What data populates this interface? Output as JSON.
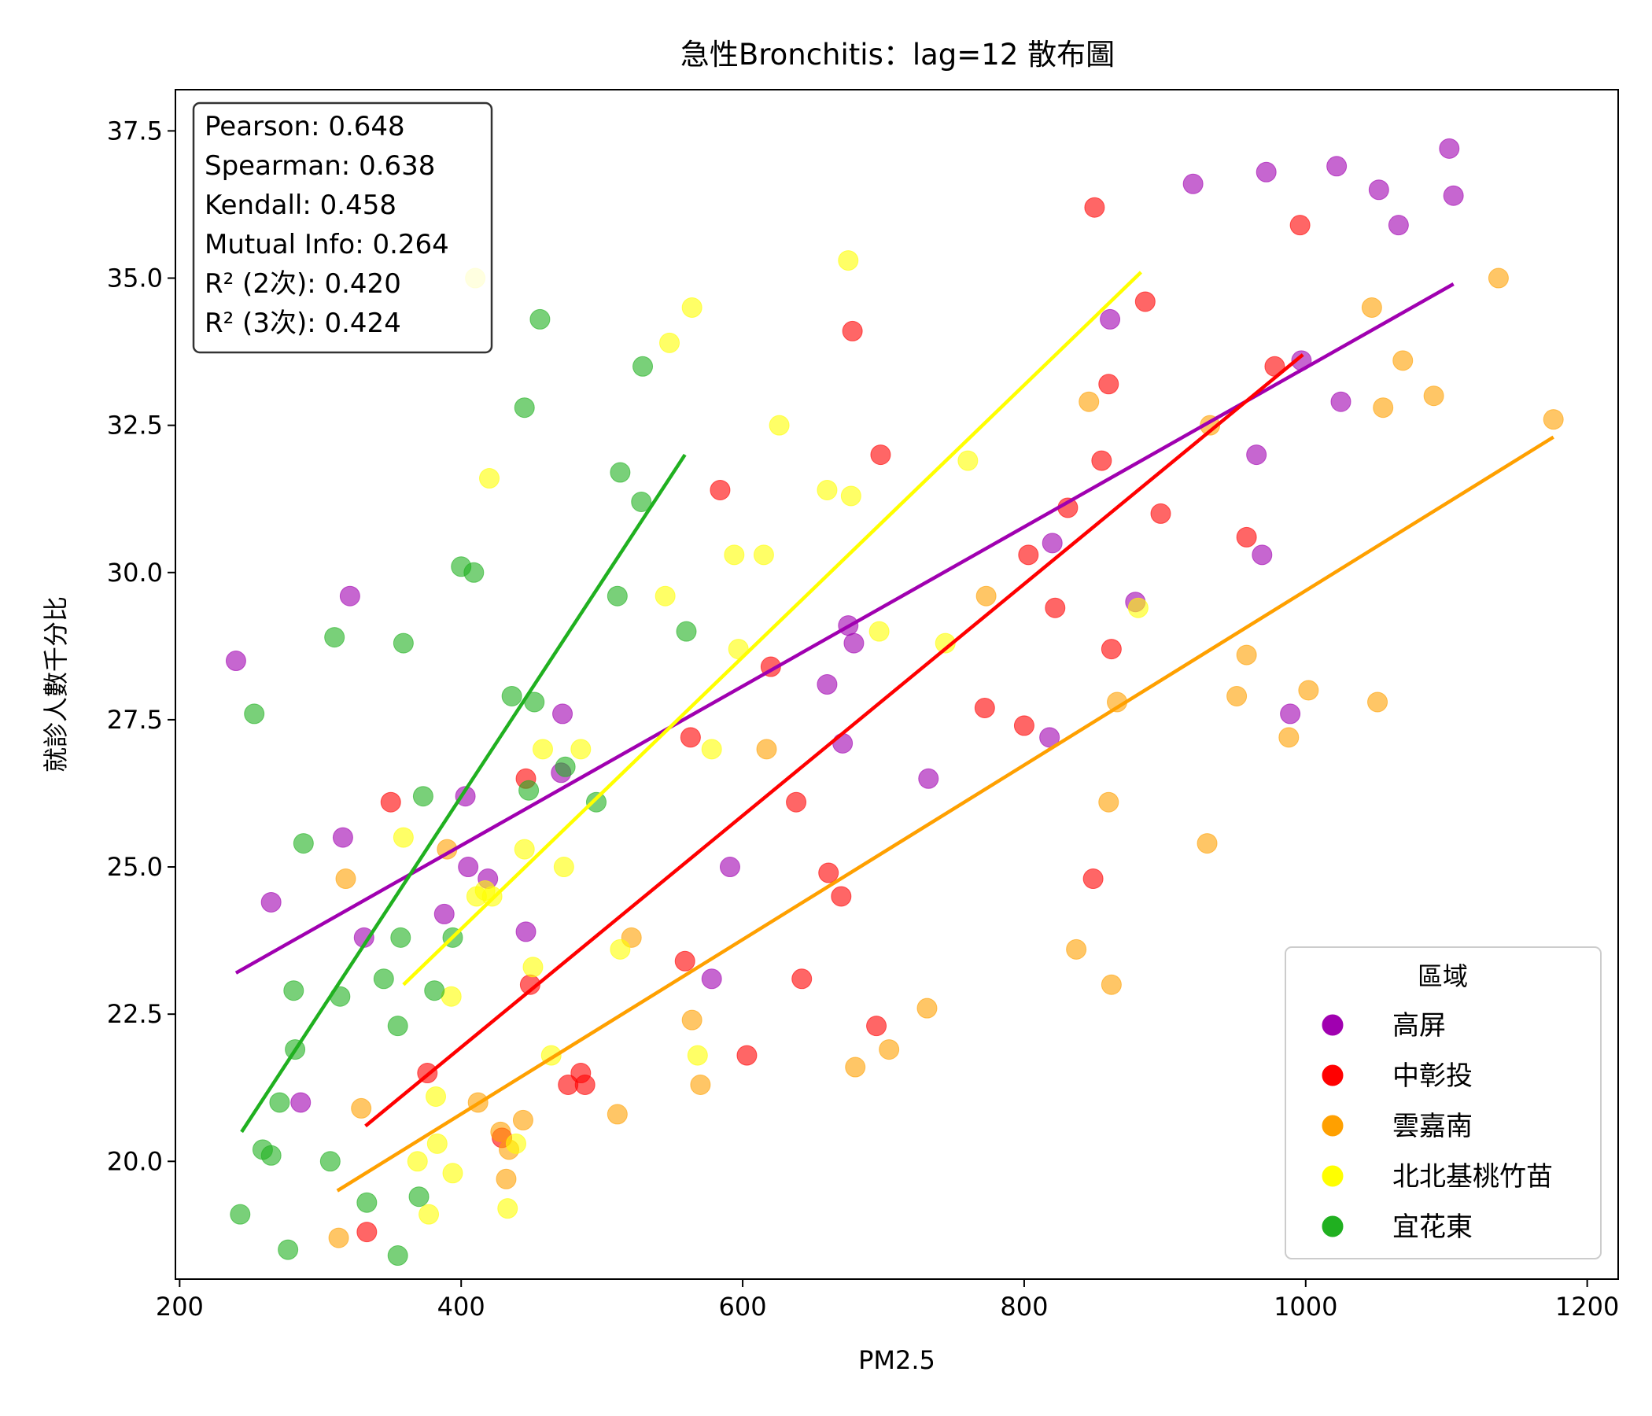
{
  "chart_data": {
    "type": "scatter",
    "title": "急性Bronchitis：lag=12 散布圖",
    "xlabel": "PM2.5",
    "ylabel": "就診人數千分比",
    "xlim": [
      197,
      1222
    ],
    "ylim": [
      18.0,
      38.2
    ],
    "xticks": [
      200,
      400,
      600,
      800,
      1000,
      1200
    ],
    "xtick_labels": [
      "200",
      "400",
      "600",
      "800",
      "1000",
      "1200"
    ],
    "yticks": [
      20.0,
      22.5,
      25.0,
      27.5,
      30.0,
      32.5,
      35.0,
      37.5
    ],
    "ytick_labels": [
      "20.0",
      "22.5",
      "25.0",
      "27.5",
      "30.0",
      "32.5",
      "35.0",
      "37.5"
    ],
    "grid": false,
    "stats_box": [
      "Pearson: 0.648",
      "Spearman: 0.638",
      "Kendall: 0.458",
      "Mutual Info: 0.264",
      "R² (2次): 0.420",
      "R² (3次): 0.424"
    ],
    "legend": {
      "title": "區域",
      "placement": "lower-right"
    },
    "series": [
      {
        "name": "高屏",
        "color": "#a000b0",
        "points": [
          [
            240,
            28.5
          ],
          [
            265,
            24.4
          ],
          [
            286,
            21.0
          ],
          [
            316,
            25.5
          ],
          [
            321,
            29.6
          ],
          [
            331,
            23.8
          ],
          [
            403,
            26.2
          ],
          [
            405,
            25.0
          ],
          [
            388,
            24.2
          ],
          [
            419,
            24.8
          ],
          [
            446,
            23.9
          ],
          [
            471,
            26.6
          ],
          [
            472,
            27.6
          ],
          [
            578,
            23.1
          ],
          [
            591,
            25.0
          ],
          [
            660,
            28.1
          ],
          [
            671,
            27.1
          ],
          [
            675,
            29.1
          ],
          [
            679,
            28.8
          ],
          [
            732,
            26.5
          ],
          [
            818,
            27.2
          ],
          [
            820,
            30.5
          ],
          [
            861,
            34.3
          ],
          [
            879,
            29.5
          ],
          [
            920,
            36.6
          ],
          [
            965,
            32.0
          ],
          [
            969,
            30.3
          ],
          [
            972,
            36.8
          ],
          [
            989,
            27.6
          ],
          [
            997,
            33.6
          ],
          [
            1022,
            36.9
          ],
          [
            1025,
            32.9
          ],
          [
            1052,
            36.5
          ],
          [
            1066,
            35.9
          ],
          [
            1102,
            37.2
          ],
          [
            1105,
            36.4
          ]
        ],
        "fit": [
          [
            240,
            23.2
          ],
          [
            1105,
            34.9
          ]
        ]
      },
      {
        "name": "中彰投",
        "color": "#ff0000",
        "points": [
          [
            333,
            18.8
          ],
          [
            350,
            26.1
          ],
          [
            376,
            21.5
          ],
          [
            446,
            26.5
          ],
          [
            449,
            23.0
          ],
          [
            429,
            20.4
          ],
          [
            476,
            21.3
          ],
          [
            485,
            21.5
          ],
          [
            488,
            21.3
          ],
          [
            559,
            23.4
          ],
          [
            563,
            27.2
          ],
          [
            584,
            31.4
          ],
          [
            603,
            21.8
          ],
          [
            620,
            28.4
          ],
          [
            638,
            26.1
          ],
          [
            642,
            23.1
          ],
          [
            661,
            24.9
          ],
          [
            670,
            24.5
          ],
          [
            678,
            34.1
          ],
          [
            695,
            22.3
          ],
          [
            698,
            32.0
          ],
          [
            772,
            27.7
          ],
          [
            800,
            27.4
          ],
          [
            803,
            30.3
          ],
          [
            822,
            29.4
          ],
          [
            831,
            31.1
          ],
          [
            849,
            24.8
          ],
          [
            850,
            36.2
          ],
          [
            855,
            31.9
          ],
          [
            860,
            33.2
          ],
          [
            862,
            28.7
          ],
          [
            886,
            34.6
          ],
          [
            897,
            31.0
          ],
          [
            958,
            30.6
          ],
          [
            978,
            33.5
          ],
          [
            996,
            35.9
          ]
        ],
        "fit": [
          [
            332,
            20.6
          ],
          [
            998,
            33.7
          ]
        ]
      },
      {
        "name": "雲嘉南",
        "color": "#ffa000",
        "points": [
          [
            313,
            18.7
          ],
          [
            318,
            24.8
          ],
          [
            329,
            20.9
          ],
          [
            390,
            25.3
          ],
          [
            412,
            21.0
          ],
          [
            428,
            20.5
          ],
          [
            432,
            19.7
          ],
          [
            434,
            20.2
          ],
          [
            444,
            20.7
          ],
          [
            511,
            20.8
          ],
          [
            521,
            23.8
          ],
          [
            564,
            22.4
          ],
          [
            570,
            21.3
          ],
          [
            617,
            27.0
          ],
          [
            680,
            21.6
          ],
          [
            704,
            21.9
          ],
          [
            731,
            22.6
          ],
          [
            773,
            29.6
          ],
          [
            837,
            23.6
          ],
          [
            846,
            32.9
          ],
          [
            860,
            26.1
          ],
          [
            862,
            23.0
          ],
          [
            866,
            27.8
          ],
          [
            930,
            25.4
          ],
          [
            932,
            32.5
          ],
          [
            951,
            27.9
          ],
          [
            958,
            28.6
          ],
          [
            988,
            27.2
          ],
          [
            1002,
            28.0
          ],
          [
            1047,
            34.5
          ],
          [
            1051,
            27.8
          ],
          [
            1055,
            32.8
          ],
          [
            1069,
            33.6
          ],
          [
            1091,
            33.0
          ],
          [
            1137,
            35.0
          ],
          [
            1176,
            32.6
          ]
        ],
        "fit": [
          [
            312,
            19.5
          ],
          [
            1176,
            32.3
          ]
        ]
      },
      {
        "name": "北北基桃竹苗",
        "color": "#ffff00",
        "points": [
          [
            359,
            25.5
          ],
          [
            369,
            20.0
          ],
          [
            377,
            19.1
          ],
          [
            382,
            21.1
          ],
          [
            383,
            20.3
          ],
          [
            393,
            22.8
          ],
          [
            394,
            19.8
          ],
          [
            410,
            35.0
          ],
          [
            411,
            24.5
          ],
          [
            417,
            24.6
          ],
          [
            420,
            31.6
          ],
          [
            422,
            24.5
          ],
          [
            433,
            19.2
          ],
          [
            439,
            20.3
          ],
          [
            445,
            25.3
          ],
          [
            451,
            23.3
          ],
          [
            458,
            27.0
          ],
          [
            464,
            21.8
          ],
          [
            473,
            25.0
          ],
          [
            485,
            27.0
          ],
          [
            513,
            23.6
          ],
          [
            545,
            29.6
          ],
          [
            548,
            33.9
          ],
          [
            564,
            34.5
          ],
          [
            568,
            21.8
          ],
          [
            578,
            27.0
          ],
          [
            594,
            30.3
          ],
          [
            597,
            28.7
          ],
          [
            615,
            30.3
          ],
          [
            626,
            32.5
          ],
          [
            660,
            31.4
          ],
          [
            675,
            35.3
          ],
          [
            677,
            31.3
          ],
          [
            697,
            29.0
          ],
          [
            744,
            28.8
          ],
          [
            760,
            31.9
          ],
          [
            881,
            29.4
          ]
        ],
        "fit": [
          [
            359,
            23.0
          ],
          [
            883,
            35.1
          ]
        ]
      },
      {
        "name": "宜花東",
        "color": "#20b020",
        "points": [
          [
            243,
            19.1
          ],
          [
            253,
            27.6
          ],
          [
            259,
            20.2
          ],
          [
            265,
            20.1
          ],
          [
            271,
            21.0
          ],
          [
            277,
            18.5
          ],
          [
            281,
            22.9
          ],
          [
            282,
            21.9
          ],
          [
            288,
            25.4
          ],
          [
            307,
            20.0
          ],
          [
            310,
            28.9
          ],
          [
            314,
            22.8
          ],
          [
            333,
            19.3
          ],
          [
            345,
            23.1
          ],
          [
            355,
            18.4
          ],
          [
            355,
            22.3
          ],
          [
            357,
            23.8
          ],
          [
            359,
            28.8
          ],
          [
            370,
            19.4
          ],
          [
            373,
            26.2
          ],
          [
            381,
            22.9
          ],
          [
            394,
            23.8
          ],
          [
            400,
            30.1
          ],
          [
            409,
            30.0
          ],
          [
            436,
            27.9
          ],
          [
            445,
            32.8
          ],
          [
            448,
            26.3
          ],
          [
            452,
            27.8
          ],
          [
            456,
            34.3
          ],
          [
            474,
            26.7
          ],
          [
            496,
            26.1
          ],
          [
            511,
            29.6
          ],
          [
            513,
            31.7
          ],
          [
            528,
            31.2
          ],
          [
            529,
            33.5
          ],
          [
            560,
            29.0
          ]
        ],
        "fit": [
          [
            244,
            20.5
          ],
          [
            559,
            32.0
          ]
        ]
      }
    ]
  }
}
